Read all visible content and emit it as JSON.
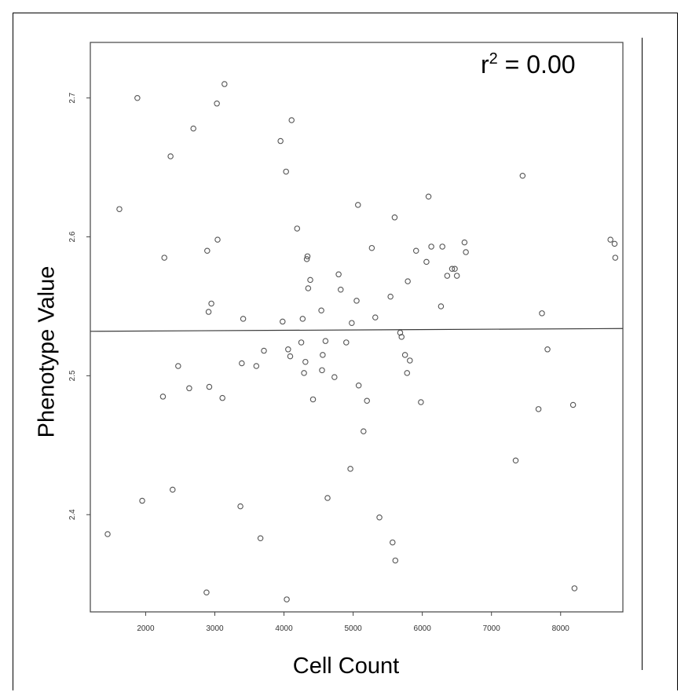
{
  "chart_data": {
    "type": "scatter",
    "title": "",
    "xlabel": "Cell Count",
    "ylabel": "Phenotype Value",
    "annotation": {
      "prefix": "r",
      "sup": "2",
      "suffix": " = 0.00"
    },
    "xlim": [
      1200,
      8900
    ],
    "ylim": [
      2.33,
      2.74
    ],
    "x_ticks": [
      2000,
      3000,
      4000,
      5000,
      6000,
      7000,
      8000
    ],
    "y_ticks": [
      2.4,
      2.5,
      2.6,
      2.7
    ],
    "grid": false,
    "marker_color": "#555555",
    "trend_color": "#3a3a3a",
    "trend_line": {
      "x": [
        1200,
        8900
      ],
      "y": [
        2.532,
        2.534
      ]
    },
    "points": [
      {
        "x": 1450,
        "y": 2.386
      },
      {
        "x": 1620,
        "y": 2.62
      },
      {
        "x": 1880,
        "y": 2.7
      },
      {
        "x": 1950,
        "y": 2.41
      },
      {
        "x": 2250,
        "y": 2.485
      },
      {
        "x": 2270,
        "y": 2.585
      },
      {
        "x": 2360,
        "y": 2.658
      },
      {
        "x": 2390,
        "y": 2.418
      },
      {
        "x": 2470,
        "y": 2.507
      },
      {
        "x": 2630,
        "y": 2.491
      },
      {
        "x": 2690,
        "y": 2.678
      },
      {
        "x": 2880,
        "y": 2.344
      },
      {
        "x": 2890,
        "y": 2.59
      },
      {
        "x": 2910,
        "y": 2.546
      },
      {
        "x": 2920,
        "y": 2.492
      },
      {
        "x": 2950,
        "y": 2.552
      },
      {
        "x": 3030,
        "y": 2.696
      },
      {
        "x": 3040,
        "y": 2.598
      },
      {
        "x": 3110,
        "y": 2.484
      },
      {
        "x": 3140,
        "y": 2.71
      },
      {
        "x": 3370,
        "y": 2.406
      },
      {
        "x": 3390,
        "y": 2.509
      },
      {
        "x": 3410,
        "y": 2.541
      },
      {
        "x": 3600,
        "y": 2.507
      },
      {
        "x": 3660,
        "y": 2.383
      },
      {
        "x": 3710,
        "y": 2.518
      },
      {
        "x": 3950,
        "y": 2.669
      },
      {
        "x": 3980,
        "y": 2.539
      },
      {
        "x": 4030,
        "y": 2.647
      },
      {
        "x": 4040,
        "y": 2.339
      },
      {
        "x": 4060,
        "y": 2.519
      },
      {
        "x": 4090,
        "y": 2.514
      },
      {
        "x": 4110,
        "y": 2.684
      },
      {
        "x": 4190,
        "y": 2.606
      },
      {
        "x": 4250,
        "y": 2.524
      },
      {
        "x": 4270,
        "y": 2.541
      },
      {
        "x": 4290,
        "y": 2.502
      },
      {
        "x": 4310,
        "y": 2.51
      },
      {
        "x": 4330,
        "y": 2.584
      },
      {
        "x": 4340,
        "y": 2.586
      },
      {
        "x": 4350,
        "y": 2.563
      },
      {
        "x": 4380,
        "y": 2.569
      },
      {
        "x": 4420,
        "y": 2.483
      },
      {
        "x": 4540,
        "y": 2.547
      },
      {
        "x": 4550,
        "y": 2.504
      },
      {
        "x": 4560,
        "y": 2.515
      },
      {
        "x": 4600,
        "y": 2.525
      },
      {
        "x": 4630,
        "y": 2.412
      },
      {
        "x": 4730,
        "y": 2.499
      },
      {
        "x": 4790,
        "y": 2.573
      },
      {
        "x": 4820,
        "y": 2.562
      },
      {
        "x": 4900,
        "y": 2.524
      },
      {
        "x": 4960,
        "y": 2.433
      },
      {
        "x": 4980,
        "y": 2.538
      },
      {
        "x": 5050,
        "y": 2.554
      },
      {
        "x": 5070,
        "y": 2.623
      },
      {
        "x": 5080,
        "y": 2.493
      },
      {
        "x": 5150,
        "y": 2.46
      },
      {
        "x": 5200,
        "y": 2.482
      },
      {
        "x": 5270,
        "y": 2.592
      },
      {
        "x": 5320,
        "y": 2.542
      },
      {
        "x": 5380,
        "y": 2.398
      },
      {
        "x": 5540,
        "y": 2.557
      },
      {
        "x": 5570,
        "y": 2.38
      },
      {
        "x": 5600,
        "y": 2.614
      },
      {
        "x": 5610,
        "y": 2.367
      },
      {
        "x": 5680,
        "y": 2.531
      },
      {
        "x": 5700,
        "y": 2.528
      },
      {
        "x": 5750,
        "y": 2.515
      },
      {
        "x": 5780,
        "y": 2.502
      },
      {
        "x": 5790,
        "y": 2.568
      },
      {
        "x": 5820,
        "y": 2.511
      },
      {
        "x": 5910,
        "y": 2.59
      },
      {
        "x": 5980,
        "y": 2.481
      },
      {
        "x": 6060,
        "y": 2.582
      },
      {
        "x": 6090,
        "y": 2.629
      },
      {
        "x": 6130,
        "y": 2.593
      },
      {
        "x": 6270,
        "y": 2.55
      },
      {
        "x": 6290,
        "y": 2.593
      },
      {
        "x": 6360,
        "y": 2.572
      },
      {
        "x": 6430,
        "y": 2.577
      },
      {
        "x": 6470,
        "y": 2.577
      },
      {
        "x": 6500,
        "y": 2.572
      },
      {
        "x": 6610,
        "y": 2.596
      },
      {
        "x": 6630,
        "y": 2.589
      },
      {
        "x": 7350,
        "y": 2.439
      },
      {
        "x": 7450,
        "y": 2.644
      },
      {
        "x": 7680,
        "y": 2.476
      },
      {
        "x": 7730,
        "y": 2.545
      },
      {
        "x": 7810,
        "y": 2.519
      },
      {
        "x": 8180,
        "y": 2.479
      },
      {
        "x": 8200,
        "y": 2.347
      },
      {
        "x": 8720,
        "y": 2.598
      },
      {
        "x": 8780,
        "y": 2.595
      },
      {
        "x": 8790,
        "y": 2.585
      }
    ]
  }
}
